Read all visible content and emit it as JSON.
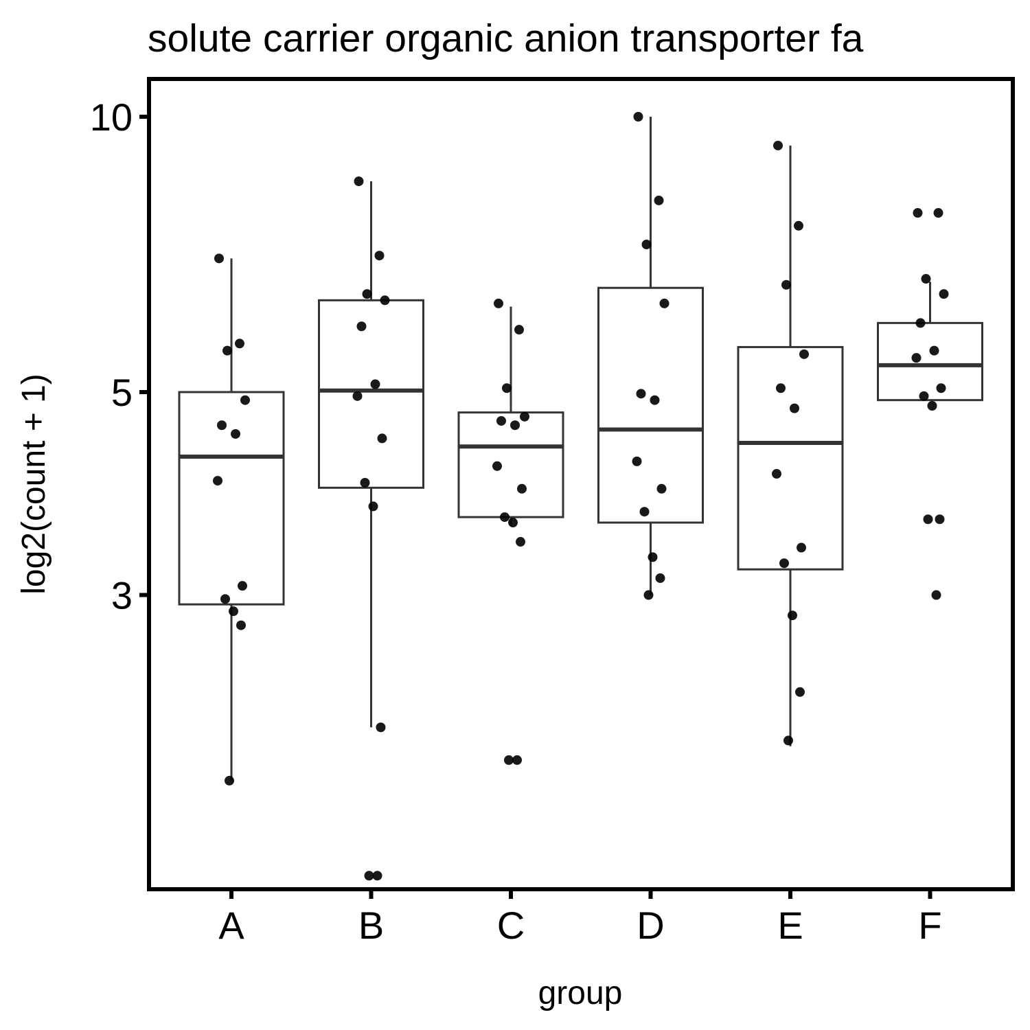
{
  "chart_data": {
    "type": "box",
    "title": "solute carrier organic anion transporter fa",
    "xlabel": "group",
    "ylabel": "log2(count + 1)",
    "y_scale": "log",
    "ylim": [
      1.35,
      10.4
    ],
    "y_ticks": [
      {
        "value": 3,
        "label": "3"
      },
      {
        "value": 5,
        "label": "5"
      },
      {
        "value": 10,
        "label": "10"
      }
    ],
    "grid": false,
    "colors": {
      "box_stroke": "#333333",
      "point": "#000000",
      "panel_border": "#000000"
    },
    "categories": [
      "A",
      "B",
      "C",
      "D",
      "E",
      "F"
    ],
    "boxes": [
      {
        "group": "A",
        "lower_whisker": 1.88,
        "q1": 2.93,
        "median": 4.25,
        "q3": 5.0,
        "upper_whisker": 7.0
      },
      {
        "group": "B",
        "lower_whisker": 2.15,
        "q1": 3.93,
        "median": 5.02,
        "q3": 6.3,
        "upper_whisker": 8.5
      },
      {
        "group": "C",
        "lower_whisker": 3.57,
        "q1": 3.65,
        "median": 4.36,
        "q3": 4.75,
        "upper_whisker": 6.2
      },
      {
        "group": "D",
        "lower_whisker": 3.0,
        "q1": 3.6,
        "median": 4.55,
        "q3": 6.5,
        "upper_whisker": 10.0
      },
      {
        "group": "E",
        "lower_whisker": 2.05,
        "q1": 3.2,
        "median": 4.4,
        "q3": 5.6,
        "upper_whisker": 9.3
      },
      {
        "group": "F",
        "lower_whisker": 4.9,
        "q1": 4.9,
        "median": 5.35,
        "q3": 5.95,
        "upper_whisker": 6.6
      }
    ],
    "points": [
      {
        "group": "A",
        "values": [
          7.0,
          5.65,
          5.55,
          4.9,
          4.6,
          4.5,
          4.0,
          3.07,
          2.97,
          2.88,
          2.78,
          1.88
        ]
      },
      {
        "group": "B",
        "values": [
          8.5,
          7.05,
          6.4,
          6.3,
          5.9,
          5.1,
          4.95,
          4.45,
          3.98,
          3.75,
          2.15,
          1.48,
          1.48
        ]
      },
      {
        "group": "C",
        "values": [
          6.25,
          5.85,
          5.05,
          4.7,
          4.65,
          4.6,
          4.15,
          3.92,
          3.65,
          3.6,
          3.43,
          1.98,
          1.98
        ]
      },
      {
        "group": "D",
        "values": [
          10.0,
          8.1,
          7.25,
          6.25,
          4.98,
          4.9,
          4.2,
          3.92,
          3.7,
          3.3,
          3.13,
          3.0
        ]
      },
      {
        "group": "E",
        "values": [
          9.3,
          7.6,
          6.55,
          5.5,
          5.05,
          4.8,
          4.07,
          3.38,
          3.25,
          2.85,
          2.35,
          2.08
        ]
      },
      {
        "group": "F",
        "values": [
          7.85,
          7.85,
          6.65,
          6.4,
          5.95,
          5.55,
          5.45,
          5.05,
          4.95,
          4.83,
          3.63,
          3.63,
          3.0
        ]
      }
    ]
  }
}
